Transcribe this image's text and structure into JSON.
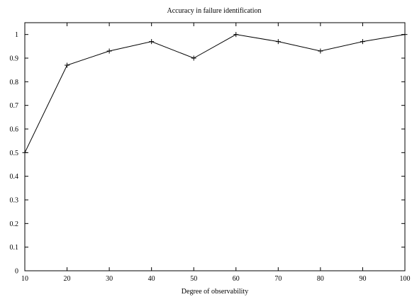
{
  "chart_data": {
    "type": "line",
    "title": "Accuracy in failure identification",
    "xlabel": "Degree of observability",
    "ylabel": "",
    "x": [
      10,
      20,
      30,
      40,
      50,
      60,
      70,
      80,
      90,
      100
    ],
    "series": [
      {
        "values": [
          0.5,
          0.87,
          0.93,
          0.97,
          0.9,
          1.0,
          0.97,
          0.93,
          0.97,
          1.0
        ],
        "color": "#000000",
        "marker": "plus"
      }
    ],
    "xlim": [
      10,
      100
    ],
    "ylim": [
      0,
      1.05
    ],
    "xticks": [
      10,
      20,
      30,
      40,
      50,
      60,
      70,
      80,
      90,
      100
    ],
    "yticks": [
      0,
      0.1,
      0.2,
      0.3,
      0.4,
      0.5,
      0.6,
      0.7,
      0.8,
      0.9,
      1
    ],
    "xtick_labels": [
      "10",
      "20",
      "30",
      "40",
      "50",
      "60",
      "70",
      "80",
      "90",
      "100"
    ],
    "ytick_labels": [
      "0",
      "0.1",
      "0.2",
      "0.3",
      "0.4",
      "0.5",
      "0.6",
      "0.7",
      "0.8",
      "0.9",
      "1"
    ],
    "grid": false,
    "legend": "none"
  }
}
